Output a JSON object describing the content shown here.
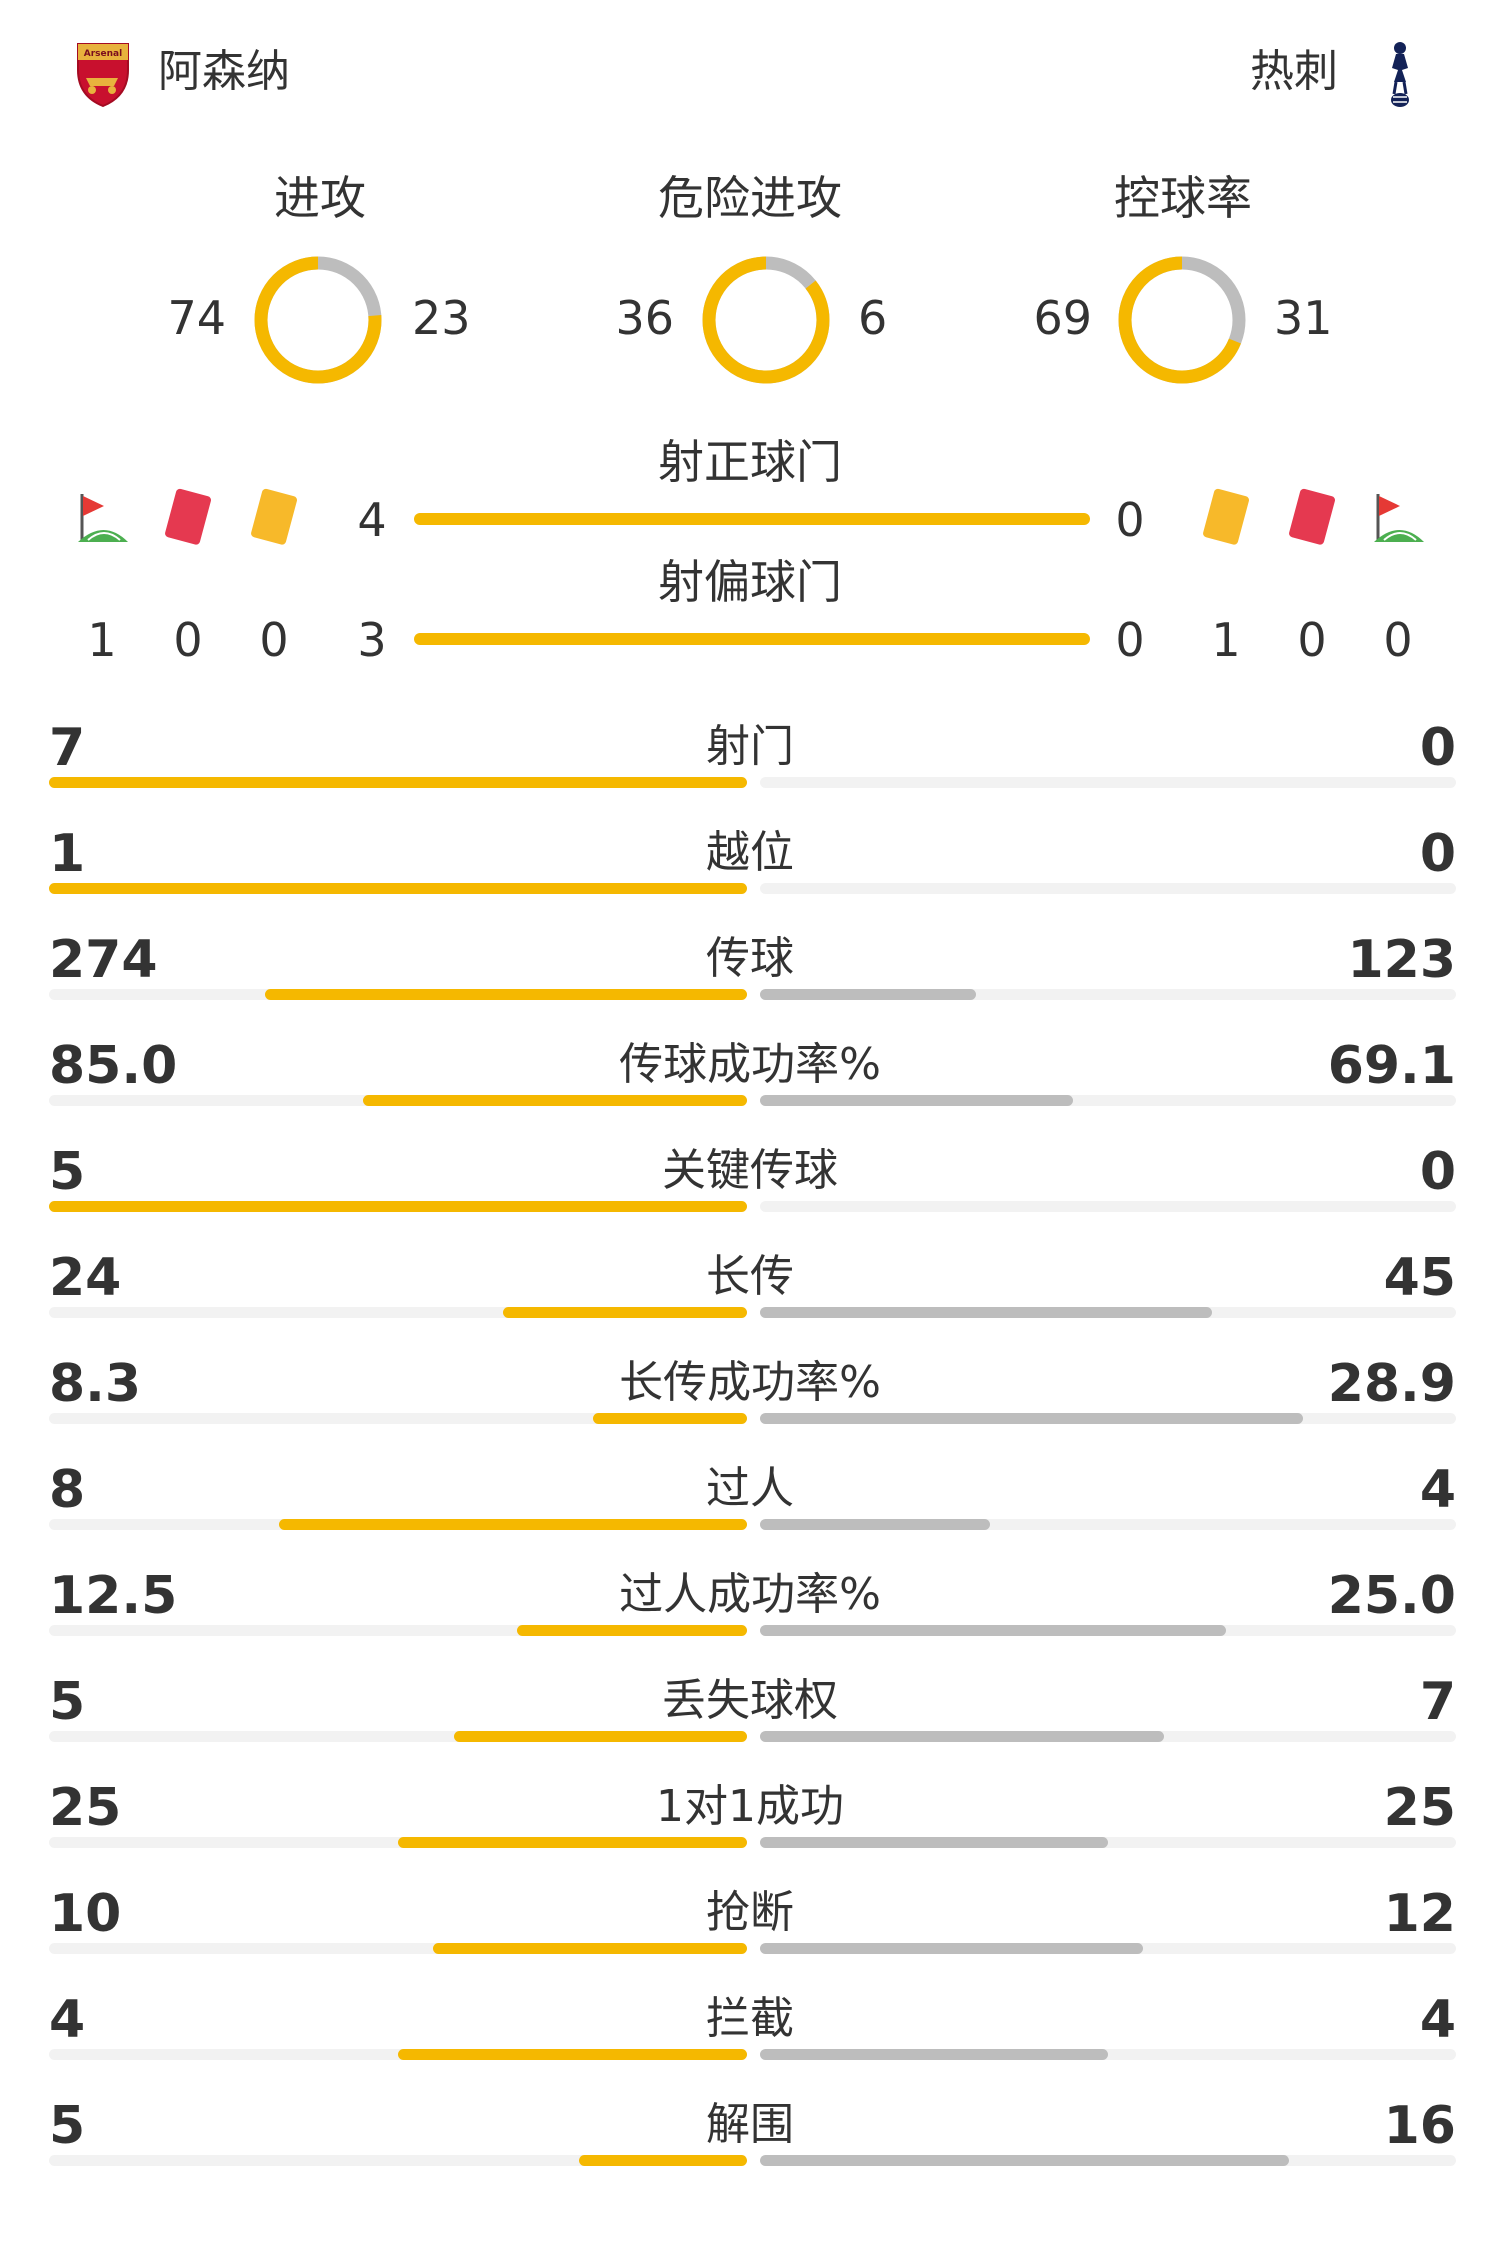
{
  "header": {
    "home_team": "阿森纳",
    "away_team": "热刺",
    "home_logo_text": "Arsenal"
  },
  "colors": {
    "home": "#f5b800",
    "away": "#bdbdbd",
    "track": "#f2f2f2"
  },
  "donuts": [
    {
      "label": "进攻",
      "home": 74,
      "away": 23
    },
    {
      "label": "危险进攻",
      "home": 36,
      "away": 6
    },
    {
      "label": "控球率",
      "home": 69,
      "away": 31
    }
  ],
  "shots": {
    "on_target": {
      "label": "射正球门",
      "home": "4",
      "away": "0"
    },
    "off_target": {
      "label": "射偏球门",
      "home": "3",
      "away": "0"
    }
  },
  "events": {
    "home": {
      "corners": "1",
      "red_cards": "0",
      "yellow_cards": "0"
    },
    "away": {
      "yellow_cards": "1",
      "red_cards": "0",
      "corners": "0"
    }
  },
  "event_icons": [
    "corner-flag-icon",
    "red-card-icon",
    "yellow-card-icon"
  ],
  "stats": [
    {
      "label": "射门",
      "home": "7",
      "away": "0",
      "home_share": 1.0,
      "away_share": 0.0
    },
    {
      "label": "越位",
      "home": "1",
      "away": "0",
      "home_share": 1.0,
      "away_share": 0.0
    },
    {
      "label": "传球",
      "home": "274",
      "away": "123",
      "home_share": 0.69,
      "away_share": 0.31
    },
    {
      "label": "传球成功率%",
      "home": "85.0",
      "away": "69.1",
      "home_share": 0.55,
      "away_share": 0.45
    },
    {
      "label": "关键传球",
      "home": "5",
      "away": "0",
      "home_share": 1.0,
      "away_share": 0.0
    },
    {
      "label": "长传",
      "home": "24",
      "away": "45",
      "home_share": 0.35,
      "away_share": 0.65
    },
    {
      "label": "长传成功率%",
      "home": "8.3",
      "away": "28.9",
      "home_share": 0.22,
      "away_share": 0.78
    },
    {
      "label": "过人",
      "home": "8",
      "away": "4",
      "home_share": 0.67,
      "away_share": 0.33
    },
    {
      "label": "过人成功率%",
      "home": "12.5",
      "away": "25.0",
      "home_share": 0.33,
      "away_share": 0.67
    },
    {
      "label": "丢失球权",
      "home": "5",
      "away": "7",
      "home_share": 0.42,
      "away_share": 0.58
    },
    {
      "label": "1对1成功",
      "home": "25",
      "away": "25",
      "home_share": 0.5,
      "away_share": 0.5
    },
    {
      "label": "抢断",
      "home": "10",
      "away": "12",
      "home_share": 0.45,
      "away_share": 0.55
    },
    {
      "label": "拦截",
      "home": "4",
      "away": "4",
      "home_share": 0.5,
      "away_share": 0.5
    },
    {
      "label": "解围",
      "home": "5",
      "away": "16",
      "home_share": 0.24,
      "away_share": 0.76
    }
  ]
}
